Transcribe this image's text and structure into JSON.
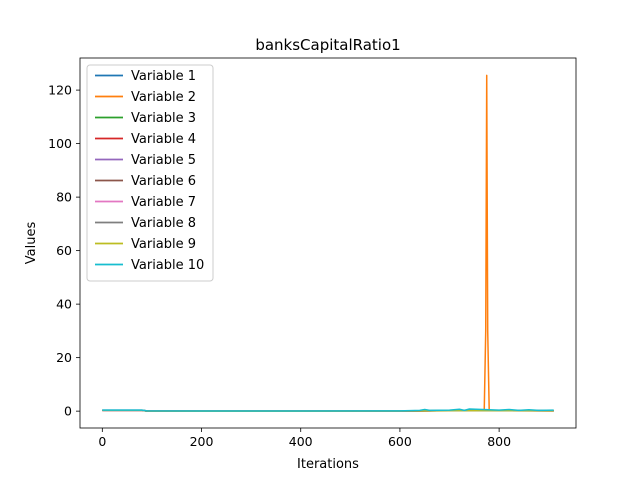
{
  "chart_data": {
    "type": "line",
    "title": "banksCapitalRatio1",
    "xlabel": "Iterations",
    "ylabel": "Values",
    "xlim": [
      -45,
      955
    ],
    "ylim": [
      -6.3,
      132
    ],
    "xticks": [
      0,
      200,
      400,
      600,
      800
    ],
    "yticks": [
      0,
      20,
      40,
      60,
      80,
      100,
      120
    ],
    "grid": false,
    "legend_position": "top-left",
    "series": [
      {
        "name": "Variable 1",
        "color": "#1f77b4",
        "x": [
          0,
          80,
          90,
          200,
          400,
          600,
          650,
          700,
          750,
          800,
          850,
          910
        ],
        "y": [
          0.4,
          0.4,
          0.1,
          0.0,
          0.0,
          0.0,
          0.2,
          0.3,
          0.4,
          0.2,
          0.3,
          0.2
        ]
      },
      {
        "name": "Variable 2",
        "color": "#ff7f0e",
        "x": [
          0,
          80,
          90,
          200,
          400,
          600,
          700,
          770,
          773,
          775,
          777,
          780,
          800,
          910
        ],
        "y": [
          0.3,
          0.3,
          0.0,
          0.0,
          0.0,
          0.0,
          0.2,
          0.3,
          30.0,
          125.5,
          30.0,
          0.3,
          0.2,
          0.2
        ]
      },
      {
        "name": "Variable 3",
        "color": "#2ca02c",
        "x": [
          0,
          80,
          90,
          200,
          400,
          600,
          700,
          800,
          910
        ],
        "y": [
          0.35,
          0.35,
          0.05,
          0.0,
          0.0,
          0.05,
          0.25,
          0.2,
          0.15
        ]
      },
      {
        "name": "Variable 4",
        "color": "#d62728",
        "x": [
          0,
          80,
          90,
          200,
          400,
          600,
          700,
          800,
          910
        ],
        "y": [
          0.3,
          0.3,
          0.0,
          -0.05,
          -0.05,
          0.0,
          0.2,
          0.15,
          0.1
        ]
      },
      {
        "name": "Variable 5",
        "color": "#9467bd",
        "x": [
          0,
          80,
          90,
          200,
          400,
          600,
          700,
          800,
          910
        ],
        "y": [
          0.35,
          0.35,
          0.05,
          0.0,
          0.0,
          0.05,
          0.2,
          0.2,
          0.15
        ]
      },
      {
        "name": "Variable 6",
        "color": "#8c564b",
        "x": [
          0,
          80,
          90,
          200,
          400,
          600,
          700,
          800,
          910
        ],
        "y": [
          0.3,
          0.3,
          0.0,
          0.0,
          0.0,
          0.0,
          0.15,
          0.2,
          0.1
        ]
      },
      {
        "name": "Variable 7",
        "color": "#e377c2",
        "x": [
          0,
          80,
          90,
          200,
          400,
          600,
          700,
          800,
          910
        ],
        "y": [
          0.35,
          0.35,
          0.05,
          0.0,
          0.0,
          0.05,
          0.2,
          0.2,
          0.15
        ]
      },
      {
        "name": "Variable 8",
        "color": "#7f7f7f",
        "x": [
          0,
          80,
          90,
          200,
          400,
          600,
          700,
          800,
          910
        ],
        "y": [
          0.3,
          0.3,
          0.0,
          0.0,
          0.0,
          0.0,
          0.2,
          0.15,
          0.1
        ]
      },
      {
        "name": "Variable 9",
        "color": "#bcbd22",
        "x": [
          0,
          80,
          90,
          200,
          400,
          600,
          700,
          800,
          910
        ],
        "y": [
          0.35,
          0.35,
          0.05,
          0.0,
          0.0,
          0.05,
          0.2,
          0.2,
          0.15
        ]
      },
      {
        "name": "Variable 10",
        "color": "#17becf",
        "x": [
          0,
          80,
          90,
          200,
          400,
          600,
          640,
          650,
          660,
          700,
          720,
          730,
          740,
          780,
          800,
          820,
          840,
          860,
          880,
          910
        ],
        "y": [
          0.4,
          0.4,
          0.1,
          0.05,
          0.05,
          0.1,
          0.3,
          0.6,
          0.3,
          0.4,
          0.7,
          0.3,
          0.8,
          0.5,
          0.4,
          0.6,
          0.3,
          0.5,
          0.3,
          0.4
        ]
      }
    ]
  }
}
